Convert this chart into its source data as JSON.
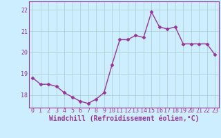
{
  "x": [
    0,
    1,
    2,
    3,
    4,
    5,
    6,
    7,
    8,
    9,
    10,
    11,
    12,
    13,
    14,
    15,
    16,
    17,
    18,
    19,
    20,
    21,
    22,
    23
  ],
  "y": [
    18.8,
    18.5,
    18.5,
    18.4,
    18.1,
    17.9,
    17.7,
    17.6,
    17.8,
    18.1,
    19.4,
    20.6,
    20.6,
    20.8,
    20.7,
    21.9,
    21.2,
    21.1,
    21.2,
    20.4,
    20.4,
    20.4,
    20.4,
    19.9
  ],
  "line_color": "#993399",
  "marker": "D",
  "marker_size": 2.5,
  "bg_color": "#cceeff",
  "grid_color": "#aacccc",
  "xlabel": "Windchill (Refroidissement éolien,°C)",
  "ylim": [
    17.4,
    22.4
  ],
  "xlim": [
    -0.5,
    23.5
  ],
  "yticks": [
    18,
    19,
    20,
    21,
    22
  ],
  "xticks": [
    0,
    1,
    2,
    3,
    4,
    5,
    6,
    7,
    8,
    9,
    10,
    11,
    12,
    13,
    14,
    15,
    16,
    17,
    18,
    19,
    20,
    21,
    22,
    23
  ],
  "title_color": "#993399",
  "label_fontsize": 7,
  "tick_fontsize": 6,
  "line_width": 1.0,
  "spine_color": "#993399"
}
